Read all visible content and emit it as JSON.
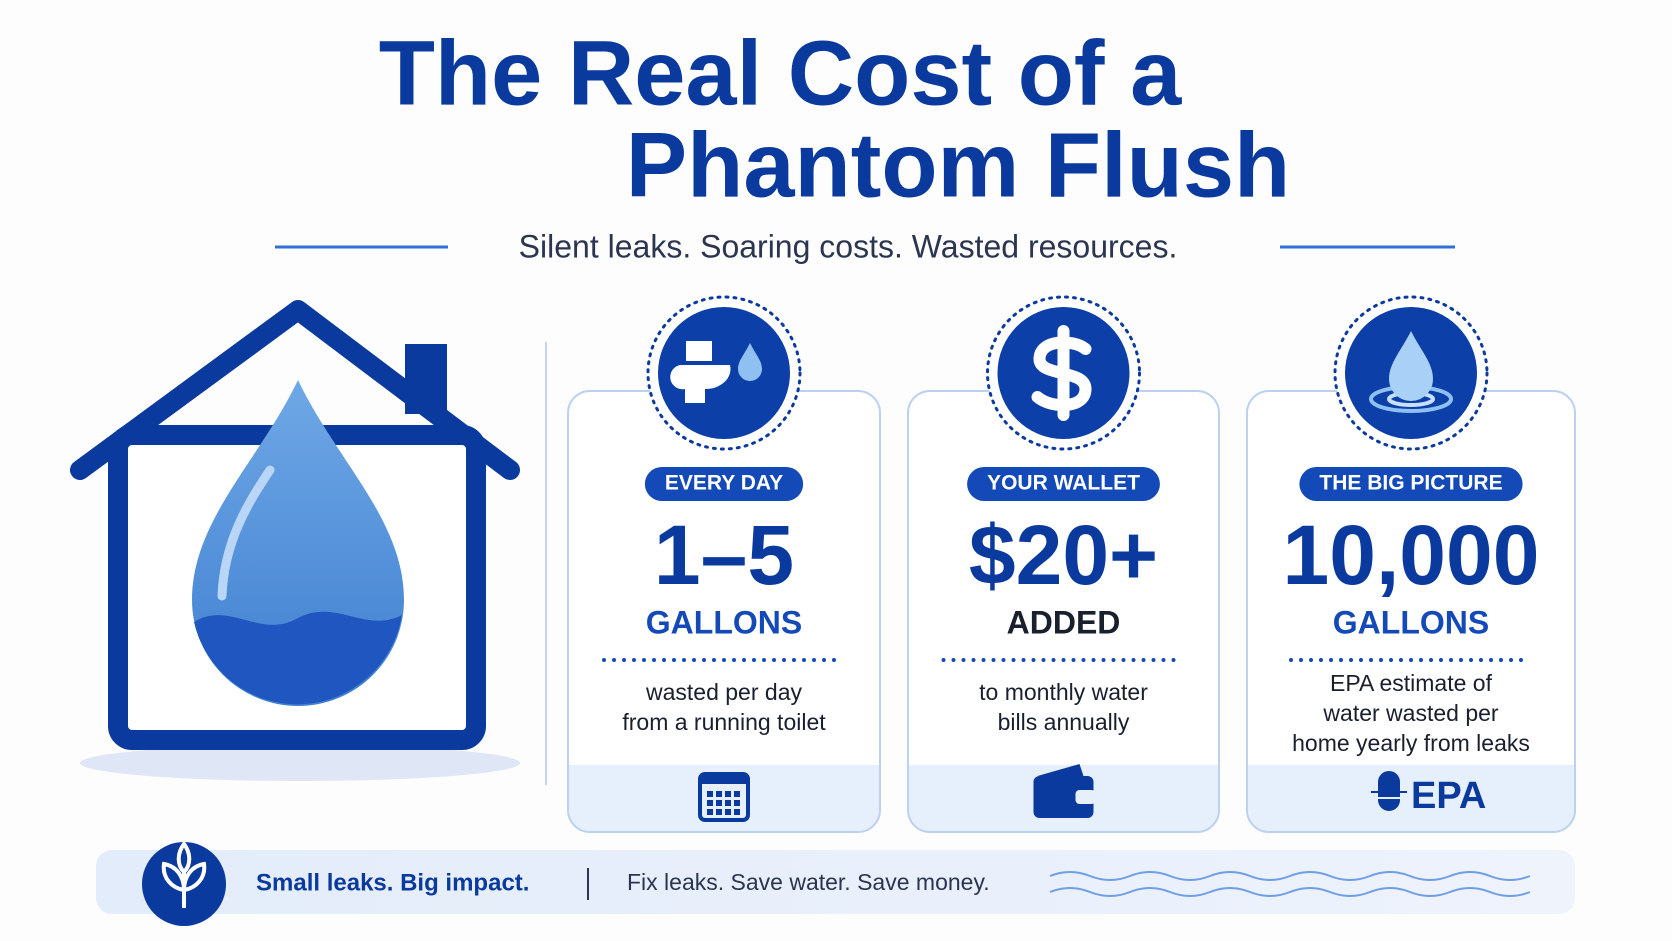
{
  "header": {
    "title": [
      "The Real Cost of a",
      "Phantom Flush"
    ],
    "subtitle": "Silent leaks. Soaring costs. Wasted resources."
  },
  "cards": [
    {
      "badge": "EVERY DAY",
      "stat": "1–5",
      "unit": "GALLONS",
      "description": [
        "wasted per day",
        "from a running toilet"
      ]
    },
    {
      "badge": "YOUR WALLET",
      "stat": "$20+",
      "unit": "ADDED",
      "description": [
        "to monthly water",
        "bills annually"
      ]
    },
    {
      "badge": "THE BIG PICTURE",
      "stat": "10,000",
      "unit": "GALLONS",
      "description": [
        "EPA estimate of",
        "water wasted per",
        "home yearly from leaks"
      ],
      "footer_label": "EPA"
    }
  ],
  "footer": {
    "slogan": "Small leaks. Big impact.",
    "call_to_action": "Fix leaks. Save water. Save money."
  }
}
